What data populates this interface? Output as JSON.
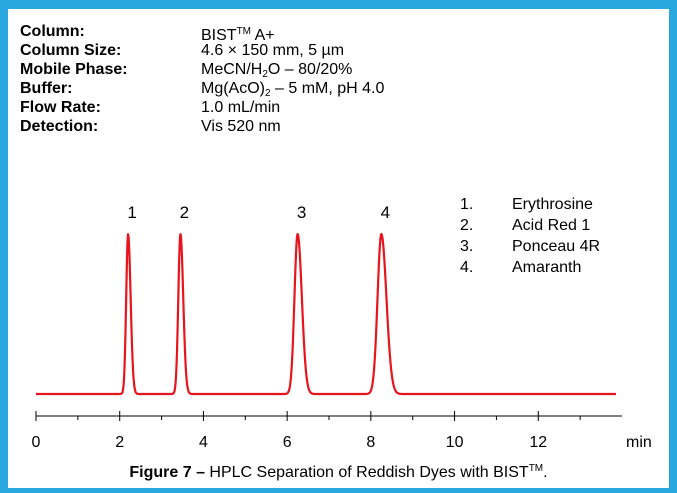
{
  "conditions": [
    {
      "label": "Column:",
      "value": "BIST",
      "sup": "TM",
      "value_after": " A+"
    },
    {
      "label": "Column Size:",
      "value": "4.6 × 150 mm, 5 µm"
    },
    {
      "label": "Mobile Phase:",
      "value": "MeCN/H",
      "sub": "2",
      "value_after": "O – 80/20%"
    },
    {
      "label": "Buffer:",
      "value": "Mg(AcO)",
      "sub": "2",
      "value_after": " – 5 mM, pH 4.0"
    },
    {
      "label": "Flow Rate:",
      "value": "1.0 mL/min"
    },
    {
      "label": "Detection:",
      "value": "Vis 520 nm"
    }
  ],
  "caption": {
    "bold": "Figure 7 –",
    "text": " HPLC Separation of Reddish Dyes with BIST",
    "sup": "TM",
    "end": "."
  },
  "colors": {
    "frame": "#29a8df",
    "trace": "#e8141c",
    "axis": "#000000"
  },
  "chart_data": {
    "type": "line",
    "xlabel": "min",
    "xlim": [
      0,
      14
    ],
    "x_ticks": [
      0,
      2,
      4,
      6,
      8,
      10,
      12
    ],
    "x_tick_labels": [
      "0",
      "2",
      "4",
      "6",
      "8",
      "10",
      "12"
    ],
    "y_axis_shown": false,
    "baseline": 0,
    "series": [
      {
        "peaks": [
          {
            "label": "1",
            "rt": 2.2,
            "height": 1.0,
            "width": 0.045
          },
          {
            "label": "2",
            "rt": 3.45,
            "height": 1.0,
            "width": 0.05
          },
          {
            "label": "3",
            "rt": 6.25,
            "height": 1.0,
            "width": 0.075
          },
          {
            "label": "4",
            "rt": 8.25,
            "height": 1.0,
            "width": 0.09
          }
        ]
      }
    ],
    "legend": [
      {
        "num": "1.",
        "name": "Erythrosine"
      },
      {
        "num": "2.",
        "name": "Acid Red 1"
      },
      {
        "num": "3.",
        "name": "Ponceau 4R"
      },
      {
        "num": "4.",
        "name": "Amaranth"
      }
    ],
    "legend_position": "top-right"
  }
}
